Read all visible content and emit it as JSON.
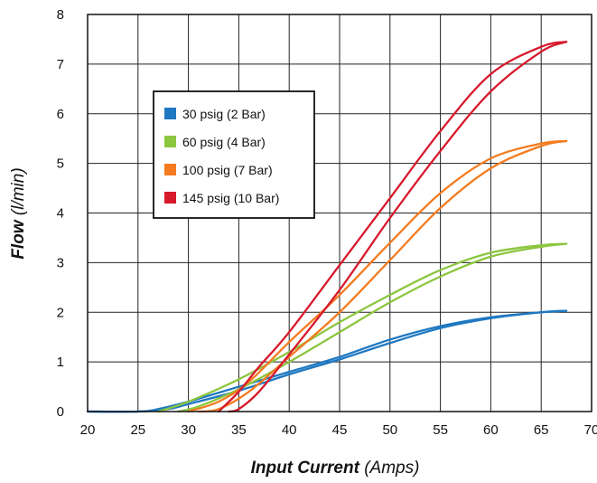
{
  "chart_data": {
    "type": "line",
    "title": "",
    "xlabel": {
      "bold": "Input Current",
      "italic": "(Amps)"
    },
    "ylabel": {
      "bold": "Flow",
      "italic": "(l/min)"
    },
    "xlim": [
      20,
      70
    ],
    "ylim": [
      0,
      8
    ],
    "xticks": [
      20,
      25,
      30,
      35,
      40,
      45,
      50,
      55,
      60,
      65,
      70
    ],
    "yticks": [
      0,
      1,
      2,
      3,
      4,
      5,
      6,
      7,
      8
    ],
    "grid": true,
    "legend_position": "upper-left",
    "series": [
      {
        "name": "30 psig (2 Bar)",
        "color": "#1f78c1",
        "rising": [
          [
            20,
            0
          ],
          [
            25,
            0
          ],
          [
            27,
            0.05
          ],
          [
            30,
            0.2
          ],
          [
            35,
            0.5
          ],
          [
            40,
            0.8
          ],
          [
            45,
            1.1
          ],
          [
            50,
            1.45
          ],
          [
            55,
            1.72
          ],
          [
            60,
            1.9
          ],
          [
            65,
            2.0
          ],
          [
            67.5,
            2.03
          ]
        ],
        "falling": [
          [
            67.5,
            2.03
          ],
          [
            65,
            2.0
          ],
          [
            60,
            1.88
          ],
          [
            55,
            1.68
          ],
          [
            50,
            1.38
          ],
          [
            45,
            1.05
          ],
          [
            40,
            0.75
          ],
          [
            35,
            0.42
          ],
          [
            30,
            0.15
          ],
          [
            28,
            0.05
          ],
          [
            25,
            0
          ],
          [
            20,
            0
          ]
        ]
      },
      {
        "name": "60 psig (4 Bar)",
        "color": "#8cc63f",
        "rising": [
          [
            27,
            0
          ],
          [
            30,
            0.2
          ],
          [
            35,
            0.65
          ],
          [
            40,
            1.2
          ],
          [
            45,
            1.8
          ],
          [
            50,
            2.35
          ],
          [
            55,
            2.85
          ],
          [
            60,
            3.2
          ],
          [
            65,
            3.35
          ],
          [
            67.5,
            3.38
          ]
        ],
        "falling": [
          [
            67.5,
            3.38
          ],
          [
            65,
            3.32
          ],
          [
            60,
            3.12
          ],
          [
            55,
            2.72
          ],
          [
            50,
            2.2
          ],
          [
            45,
            1.6
          ],
          [
            40,
            1.0
          ],
          [
            35,
            0.45
          ],
          [
            31,
            0.1
          ],
          [
            29,
            0
          ]
        ]
      },
      {
        "name": "100 psig (7 Bar)",
        "color": "#f47b20",
        "rising": [
          [
            30,
            0
          ],
          [
            33,
            0.2
          ],
          [
            36,
            0.6
          ],
          [
            40,
            1.4
          ],
          [
            45,
            2.35
          ],
          [
            50,
            3.4
          ],
          [
            55,
            4.4
          ],
          [
            60,
            5.1
          ],
          [
            65,
            5.4
          ],
          [
            67.5,
            5.45
          ]
        ],
        "falling": [
          [
            67.5,
            5.45
          ],
          [
            65,
            5.35
          ],
          [
            60,
            4.9
          ],
          [
            55,
            4.1
          ],
          [
            50,
            3.05
          ],
          [
            45,
            2.0
          ],
          [
            40,
            1.1
          ],
          [
            36,
            0.4
          ],
          [
            33,
            0.05
          ],
          [
            31,
            0
          ]
        ]
      },
      {
        "name": "145 psig (10 Bar)",
        "color": "#d7192c",
        "rising": [
          [
            33,
            0
          ],
          [
            35,
            0.4
          ],
          [
            37,
            0.9
          ],
          [
            40,
            1.6
          ],
          [
            45,
            2.95
          ],
          [
            50,
            4.3
          ],
          [
            55,
            5.65
          ],
          [
            60,
            6.8
          ],
          [
            65,
            7.35
          ],
          [
            67.5,
            7.45
          ]
        ],
        "falling": [
          [
            67.5,
            7.45
          ],
          [
            65,
            7.25
          ],
          [
            60,
            6.45
          ],
          [
            55,
            5.25
          ],
          [
            50,
            3.9
          ],
          [
            45,
            2.45
          ],
          [
            40,
            1.15
          ],
          [
            37,
            0.4
          ],
          [
            35,
            0.05
          ],
          [
            34,
            0
          ]
        ]
      }
    ]
  }
}
